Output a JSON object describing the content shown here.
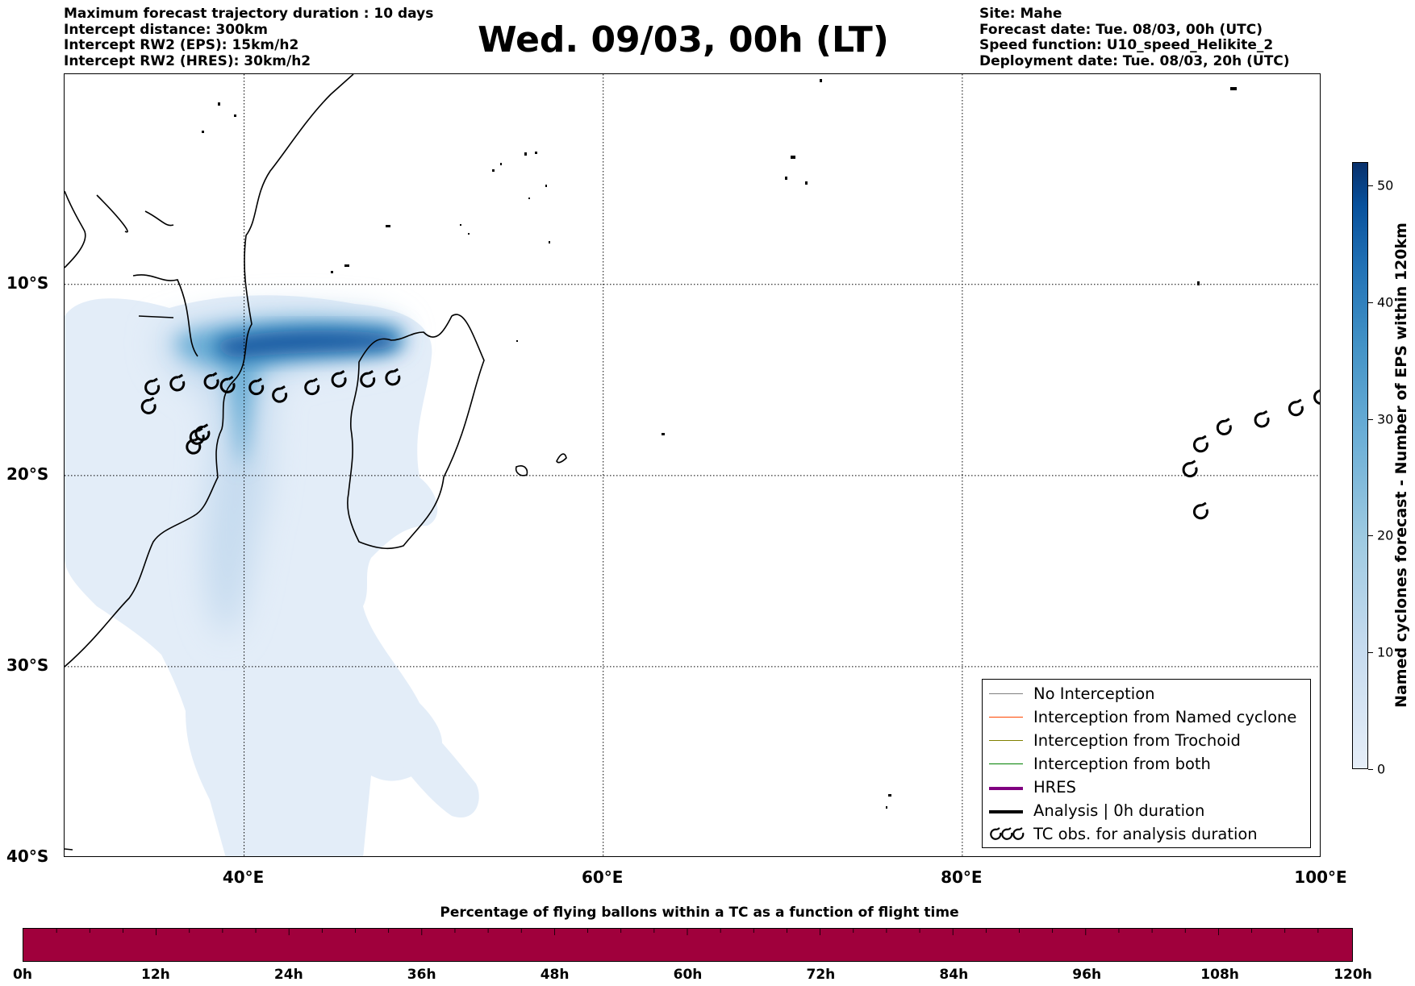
{
  "header_left": [
    "Maximum forecast trajectory duration : 10 days",
    "Intercept distance: 300km",
    "Intercept RW2 (EPS):  15km/h2",
    "Intercept RW2 (HRES): 30km/h2"
  ],
  "title": "Wed. 09/03, 00h (LT)",
  "header_right": [
    "Site: Mahe",
    "Forecast date: Tue. 08/03, 00h (UTC)",
    "Speed function: U10_speed_Helikite_2",
    "Deployment date: Tue. 08/03, 20h (UTC)"
  ],
  "map": {
    "lon_range": [
      30,
      100
    ],
    "lat_range": [
      -40,
      1
    ],
    "lat_labels": [
      {
        "text": "10°S",
        "lat": -10
      },
      {
        "text": "20°S",
        "lat": -20
      },
      {
        "text": "30°S",
        "lat": -30
      },
      {
        "text": "40°S",
        "lat": -40
      }
    ],
    "lon_labels": [
      {
        "text": "40°E",
        "lon": 40
      },
      {
        "text": "60°E",
        "lon": 60
      },
      {
        "text": "80°E",
        "lon": 80
      },
      {
        "text": "100°E",
        "lon": 100
      }
    ],
    "gridlines": "dotted",
    "tc_obs": [
      {
        "lon": 34.9,
        "lat": -15.4
      },
      {
        "lon": 36.3,
        "lat": -15.2
      },
      {
        "lon": 38.2,
        "lat": -15.1
      },
      {
        "lon": 39.1,
        "lat": -15.3
      },
      {
        "lon": 40.7,
        "lat": -15.4
      },
      {
        "lon": 42.0,
        "lat": -15.8
      },
      {
        "lon": 43.8,
        "lat": -15.4
      },
      {
        "lon": 45.3,
        "lat": -15.0
      },
      {
        "lon": 46.9,
        "lat": -15.0
      },
      {
        "lon": 48.3,
        "lat": -14.9
      },
      {
        "lon": 34.7,
        "lat": -16.4
      },
      {
        "lon": 37.7,
        "lat": -17.8
      },
      {
        "lon": 37.4,
        "lat": -18.0
      },
      {
        "lon": 37.2,
        "lat": -18.5
      },
      {
        "lon": 92.7,
        "lat": -19.7
      },
      {
        "lon": 93.3,
        "lat": -18.4
      },
      {
        "lon": 94.6,
        "lat": -17.5
      },
      {
        "lon": 96.7,
        "lat": -17.1
      },
      {
        "lon": 98.6,
        "lat": -16.5
      },
      {
        "lon": 100.0,
        "lat": -15.9
      },
      {
        "lon": 93.3,
        "lat": -21.9
      }
    ]
  },
  "legend": {
    "items": [
      {
        "label": "No Interception",
        "color": "#808080",
        "width": 1
      },
      {
        "label": "Interception from Named cyclone",
        "color": "#ff4500",
        "width": 1
      },
      {
        "label": "Interception from Trochoid",
        "color": "#808000",
        "width": 1
      },
      {
        "label": "Interception from both",
        "color": "#008000",
        "width": 1
      },
      {
        "label": "HRES",
        "color": "#800080",
        "width": 4
      },
      {
        "label": "Analysis | 0h duration",
        "color": "#000000",
        "width": 4
      },
      {
        "label": "TC obs. for analysis duration",
        "color": "#000000",
        "width": 0,
        "icon": "cyclone-symbols"
      }
    ]
  },
  "colorbar": {
    "title": "Named cyclones forecast - Number of EPS within 120km",
    "ticks": [
      "0",
      "10",
      "20",
      "30",
      "40",
      "50"
    ],
    "range": [
      0,
      52
    ]
  },
  "time_bar": {
    "title": "Percentage of flying ballons within a TC as a function of flight time",
    "color": "#a0003c",
    "ticks": [
      "0h",
      "12h",
      "24h",
      "36h",
      "48h",
      "60h",
      "72h",
      "84h",
      "96h",
      "108h",
      "120h"
    ]
  }
}
